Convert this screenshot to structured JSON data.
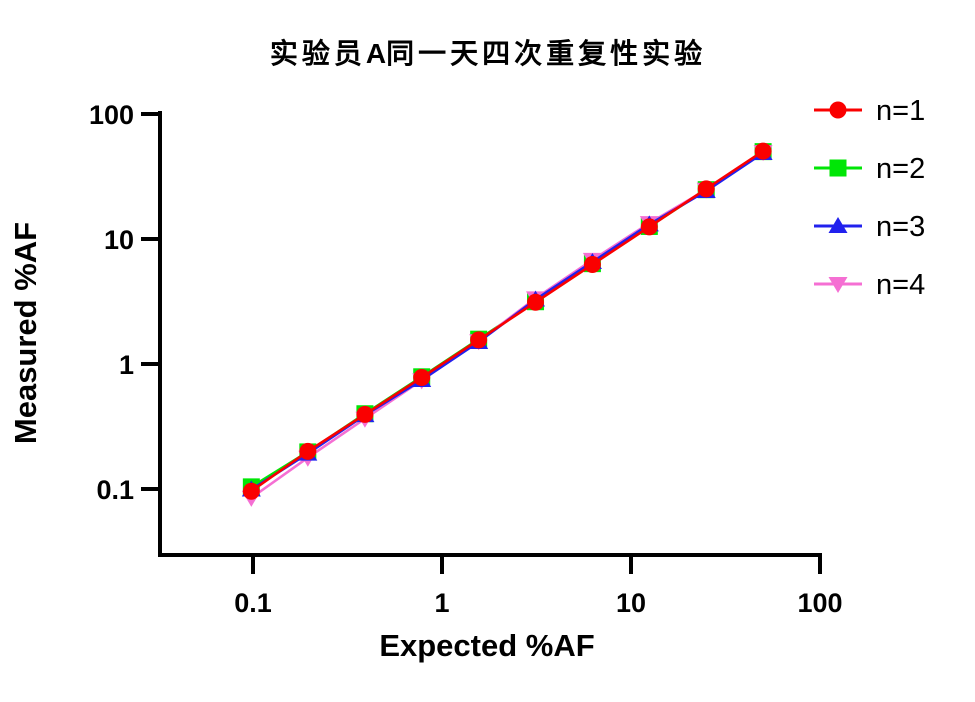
{
  "title": {
    "prefix": "实验员",
    "emphasis": "A",
    "suffix": "同一天四次重复性实验"
  },
  "chart_data": {
    "type": "line",
    "title": "实验员A同一天四次重复性实验",
    "xlabel": "Expected %AF",
    "ylabel": "Measured %AF",
    "x_scale": "log",
    "y_scale": "log",
    "xlim": [
      0.032,
      100
    ],
    "ylim": [
      0.026,
      100
    ],
    "grid": false,
    "legend_position": "right-top",
    "axis_color": "#000000",
    "x_ticks": {
      "labels": [
        "0.1",
        "1",
        "10",
        "100"
      ],
      "values": [
        0.1,
        1,
        10,
        100
      ]
    },
    "y_ticks": {
      "labels": [
        "100",
        "10",
        "1",
        "0.1"
      ],
      "values": [
        100,
        10,
        1,
        0.1
      ]
    },
    "x": [
      0.098,
      0.195,
      0.391,
      0.781,
      1.563,
      3.125,
      6.25,
      12.5,
      25,
      50
    ],
    "series": [
      {
        "name": "n=1",
        "marker": "circle",
        "color": "#fa0000",
        "values": [
          0.096,
          0.2,
          0.395,
          0.78,
          1.56,
          3.12,
          6.25,
          12.5,
          25.2,
          50.5
        ]
      },
      {
        "name": "n=2",
        "marker": "square",
        "color": "#00e606",
        "values": [
          0.104,
          0.198,
          0.4,
          0.79,
          1.58,
          3.15,
          6.35,
          12.6,
          24.8,
          50.0
        ]
      },
      {
        "name": "n=3",
        "marker": "triangle-up",
        "color": "#2121ee",
        "values": [
          0.099,
          0.192,
          0.39,
          0.745,
          1.5,
          3.28,
          6.55,
          13.1,
          24.2,
          48.8
        ]
      },
      {
        "name": "n=4",
        "marker": "triangle-down",
        "color": "#f56fd3",
        "values": [
          0.085,
          0.178,
          0.365,
          0.74,
          1.52,
          3.35,
          6.8,
          13.4,
          24.8,
          49.5
        ]
      }
    ]
  }
}
